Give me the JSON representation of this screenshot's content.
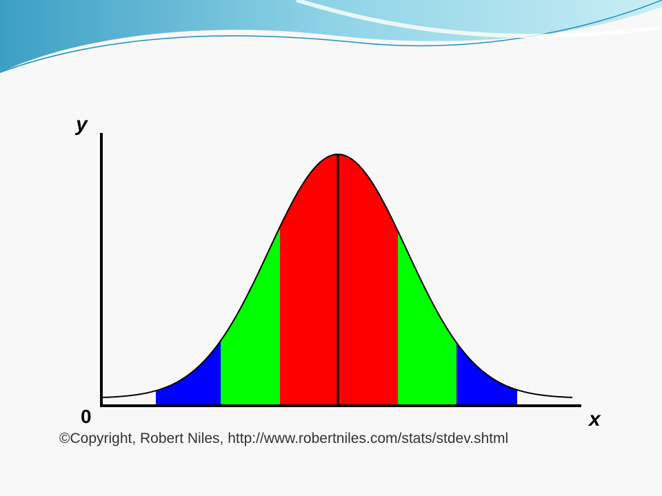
{
  "axis_labels": {
    "y": "y",
    "x": "x",
    "origin": "0"
  },
  "credit": "©Copyright, Robert Niles, http://www.robertniles.com/stats/stdev.shtml"
}
